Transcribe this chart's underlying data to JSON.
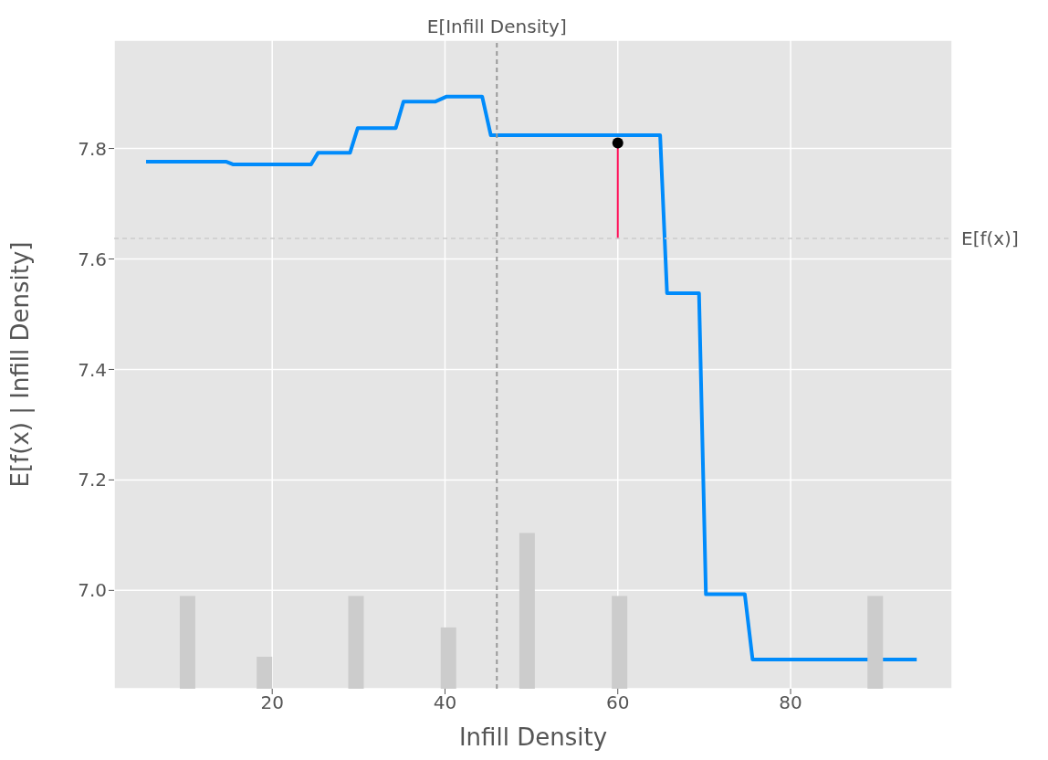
{
  "chart_data": {
    "type": "line",
    "xlabel": "Infill Density",
    "ylabel": "E[f(x) | Infill Density]",
    "xlim": [
      1.7,
      98.7
    ],
    "xticks": [
      20,
      40,
      60,
      80
    ],
    "ylim": [
      6.822,
      7.996
    ],
    "yticks": [
      {
        "value": 7.0,
        "label": "7.0"
      },
      7.2,
      7.4,
      7.6,
      7.8
    ],
    "grid": true,
    "series": [
      {
        "type": "bar",
        "color": "#cccccc",
        "x": [
          10.2,
          19.1,
          29.7,
          40.4,
          49.5,
          60.2,
          89.8
        ],
        "values": [
          6.99,
          6.88,
          6.99,
          6.933,
          7.104,
          6.99,
          6.99
        ]
      },
      {
        "color": "#008bfb",
        "x": [
          5.4,
          14.7,
          15.5,
          24.5,
          25.3,
          29.0,
          29.9,
          34.3,
          35.2,
          38.9,
          40.2,
          44.3,
          45.3,
          64.9,
          65.7,
          69.4,
          70.2,
          74.7,
          75.6,
          94.6
        ],
        "values": [
          7.776,
          7.776,
          7.771,
          7.771,
          7.792,
          7.792,
          7.837,
          7.837,
          7.885,
          7.885,
          7.894,
          7.894,
          7.824,
          7.824,
          7.538,
          7.538,
          6.993,
          6.993,
          6.875,
          6.875
        ]
      },
      {
        "type": "line",
        "color": "#ff0d57",
        "x": [
          60,
          60
        ],
        "values": [
          7.637,
          7.81
        ]
      },
      {
        "type": "scatter",
        "color": "#000000",
        "x": [
          60
        ],
        "values": [
          7.81
        ]
      }
    ],
    "ref_lines": [
      {
        "axis": "x",
        "value": 46.0,
        "label": "E[Infill Density]",
        "color": "#999999",
        "line_style": "dashed"
      },
      {
        "axis": "y",
        "value": 7.637,
        "label": "E[f(x)]",
        "color": "#cccccc",
        "line_style": "dashed"
      }
    ]
  }
}
